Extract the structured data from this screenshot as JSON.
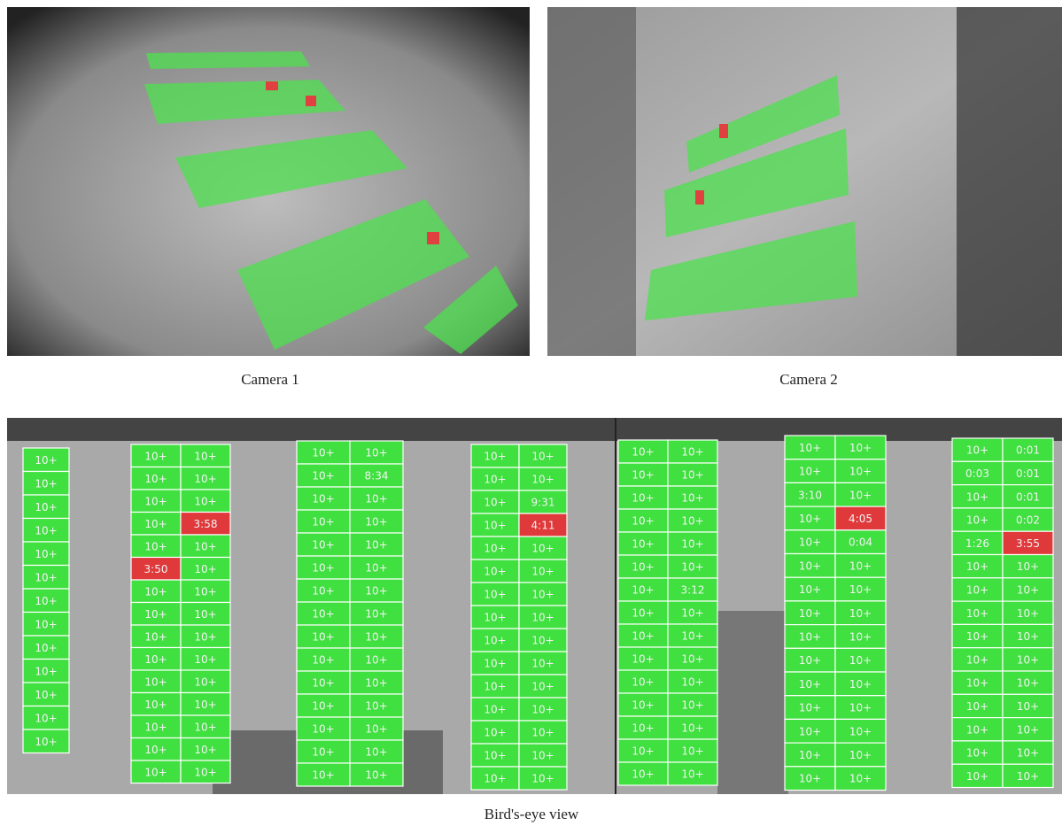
{
  "cameras": [
    {
      "caption": "Camera 1"
    },
    {
      "caption": "Camera 2"
    }
  ],
  "birds_eye": {
    "caption": "Bird's-eye view",
    "free_color": "#3fe03f",
    "blocks": [
      {
        "rows": [
          [
            "10+"
          ],
          [
            "10+"
          ],
          [
            "10+"
          ],
          [
            "10+"
          ],
          [
            "10+"
          ],
          [
            "10+"
          ],
          [
            "10+"
          ],
          [
            "10+"
          ],
          [
            "10+"
          ],
          [
            "10+"
          ],
          [
            "10+"
          ],
          [
            "10+"
          ],
          [
            "10+"
          ]
        ]
      },
      {
        "rows": [
          [
            "10+",
            "10+"
          ],
          [
            "10+",
            "10+"
          ],
          [
            "10+",
            "10+"
          ],
          [
            "10+",
            {
              "label": "3:58",
              "color": "#e0393b"
            }
          ],
          [
            "10+",
            "10+"
          ],
          [
            {
              "label": "3:50",
              "color": "#e0393b"
            },
            "10+"
          ],
          [
            "10+",
            "10+"
          ],
          [
            "10+",
            "10+"
          ],
          [
            "10+",
            "10+"
          ],
          [
            "10+",
            "10+"
          ],
          [
            "10+",
            "10+"
          ],
          [
            "10+",
            "10+"
          ],
          [
            "10+",
            "10+"
          ],
          [
            "10+",
            "10+"
          ],
          [
            "10+",
            "10+"
          ]
        ]
      },
      {
        "rows": [
          [
            "10+",
            "10+"
          ],
          [
            "10+",
            "8:34"
          ],
          [
            "10+",
            "10+"
          ],
          [
            "10+",
            "10+"
          ],
          [
            "10+",
            "10+"
          ],
          [
            "10+",
            "10+"
          ],
          [
            "10+",
            "10+"
          ],
          [
            "10+",
            "10+"
          ],
          [
            "10+",
            "10+"
          ],
          [
            "10+",
            "10+"
          ],
          [
            "10+",
            "10+"
          ],
          [
            "10+",
            "10+"
          ],
          [
            "10+",
            "10+"
          ],
          [
            "10+",
            "10+"
          ],
          [
            "10+",
            "10+"
          ]
        ]
      },
      {
        "rows": [
          [
            "10+",
            "10+"
          ],
          [
            "10+",
            "10+"
          ],
          [
            "10+",
            "9:31"
          ],
          [
            "10+",
            {
              "label": "4:11",
              "color": "#e0393b"
            }
          ],
          [
            "10+",
            "10+"
          ],
          [
            "10+",
            "10+"
          ],
          [
            "10+",
            "10+"
          ],
          [
            "10+",
            "10+"
          ],
          [
            "10+",
            "10+"
          ],
          [
            "10+",
            "10+"
          ],
          [
            "10+",
            "10+"
          ],
          [
            "10+",
            "10+"
          ],
          [
            "10+",
            "10+"
          ],
          [
            "10+",
            "10+"
          ],
          [
            "10+",
            "10+"
          ]
        ]
      },
      {
        "rows": [
          [
            "10+",
            "10+"
          ],
          [
            "10+",
            "10+"
          ],
          [
            "10+",
            "10+"
          ],
          [
            "10+",
            "10+"
          ],
          [
            "10+",
            "10+"
          ],
          [
            "10+",
            "10+"
          ],
          [
            "10+",
            "3:12"
          ],
          [
            "10+",
            "10+"
          ],
          [
            "10+",
            "10+"
          ],
          [
            "10+",
            "10+"
          ],
          [
            "10+",
            "10+"
          ],
          [
            "10+",
            "10+"
          ],
          [
            "10+",
            "10+"
          ],
          [
            "10+",
            "10+"
          ],
          [
            "10+",
            "10+"
          ]
        ]
      },
      {
        "rows": [
          [
            "10+",
            "10+"
          ],
          [
            "10+",
            "10+"
          ],
          [
            "3:10",
            "10+"
          ],
          [
            "10+",
            {
              "label": "4:05",
              "color": "#e0393b"
            }
          ],
          [
            "10+",
            "0:04"
          ],
          [
            "10+",
            "10+"
          ],
          [
            "10+",
            "10+"
          ],
          [
            "10+",
            "10+"
          ],
          [
            "10+",
            "10+"
          ],
          [
            "10+",
            "10+"
          ],
          [
            "10+",
            "10+"
          ],
          [
            "10+",
            "10+"
          ],
          [
            "10+",
            "10+"
          ],
          [
            "10+",
            "10+"
          ],
          [
            "10+",
            "10+"
          ]
        ]
      },
      {
        "rows": [
          [
            "10+",
            "0:01"
          ],
          [
            "0:03",
            "0:01"
          ],
          [
            "10+",
            "0:01"
          ],
          [
            "10+",
            "0:02"
          ],
          [
            "1:26",
            {
              "label": "3:55",
              "color": "#e0393b"
            }
          ],
          [
            "10+",
            "10+"
          ],
          [
            "10+",
            "10+"
          ],
          [
            "10+",
            "10+"
          ],
          [
            "10+",
            "10+"
          ],
          [
            "10+",
            "10+"
          ],
          [
            "10+",
            "10+"
          ],
          [
            "10+",
            "10+"
          ],
          [
            "10+",
            "10+"
          ],
          [
            "10+",
            "10+"
          ],
          [
            "10+",
            "10+"
          ]
        ]
      }
    ]
  }
}
